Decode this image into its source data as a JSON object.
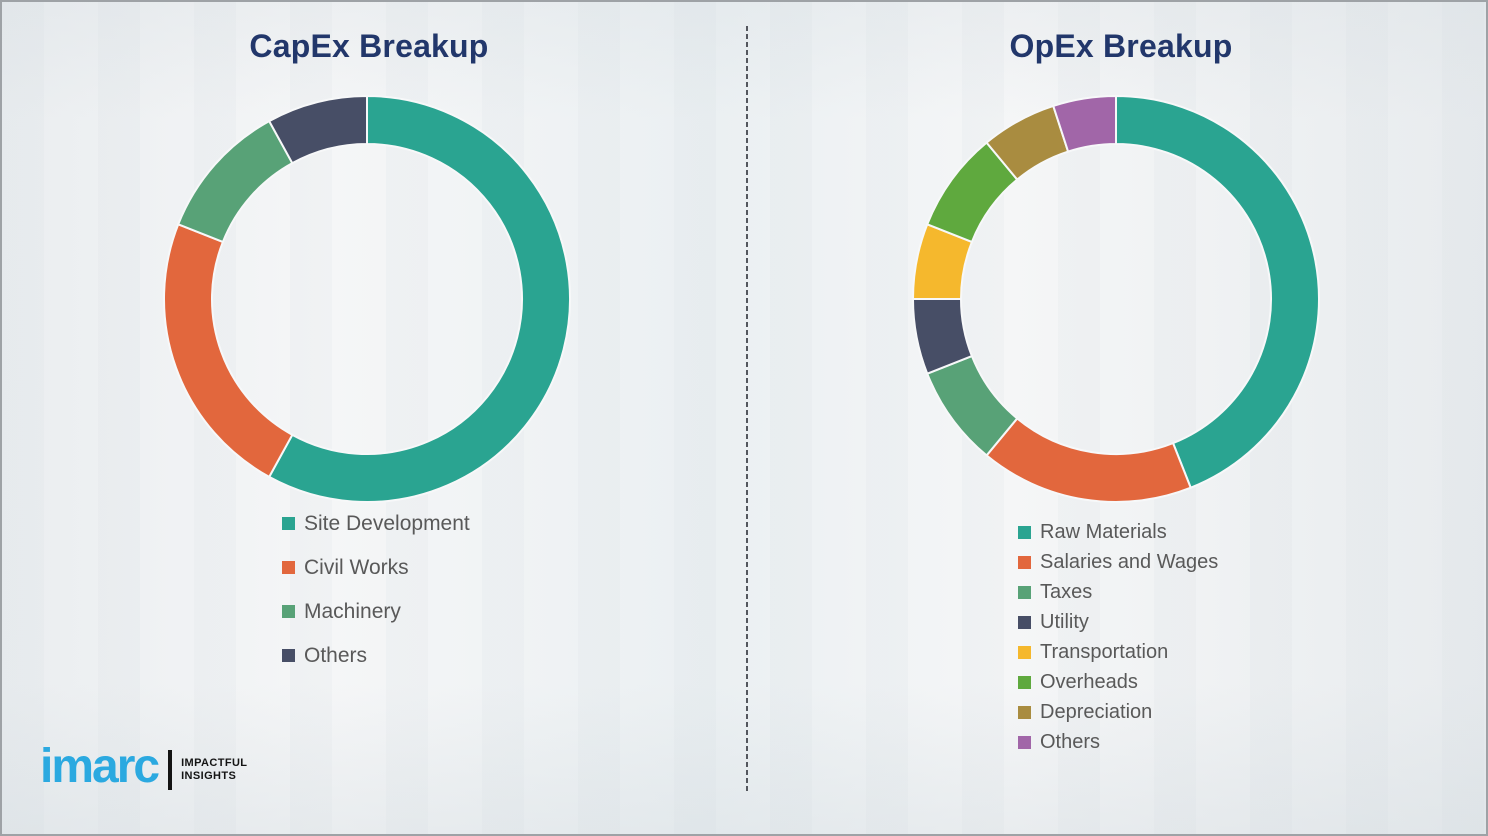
{
  "page": {
    "background_color": "#F5F6F7",
    "border_color": "#9EA2A6",
    "divider_style": "vertical-dashed"
  },
  "chart_data": [
    {
      "type": "pie",
      "subtype": "donut",
      "title": "CapEx Breakup",
      "labels": [
        "Site Development",
        "Civil Works",
        "Machinery",
        "Others"
      ],
      "values": [
        58,
        23,
        11,
        8
      ],
      "colors": [
        "#2AA491",
        "#E2673D",
        "#58A277",
        "#474E66"
      ],
      "start_angle_deg": 0,
      "direction": "clockwise",
      "donut_hole_ratio": 0.765,
      "legend_position": "below-left",
      "data_labels_shown": false
    },
    {
      "type": "pie",
      "subtype": "donut",
      "title": "OpEx Breakup",
      "labels": [
        "Raw Materials",
        "Salaries and Wages",
        "Taxes",
        "Utility",
        "Transportation",
        "Overheads",
        "Depreciation",
        "Others"
      ],
      "values": [
        44,
        17,
        8,
        6,
        6,
        8,
        6,
        5
      ],
      "colors": [
        "#2AA491",
        "#E2673D",
        "#58A277",
        "#474E66",
        "#F5B82D",
        "#5FA93E",
        "#A98C40",
        "#A166A8"
      ],
      "start_angle_deg": 0,
      "direction": "clockwise",
      "donut_hole_ratio": 0.765,
      "legend_position": "below-left",
      "data_labels_shown": false
    }
  ],
  "branding": {
    "logo_text": "imarc",
    "logo_color": "#2BA9E0",
    "tagline_line1": "IMPACTFUL",
    "tagline_line2": "INSIGHTS"
  }
}
